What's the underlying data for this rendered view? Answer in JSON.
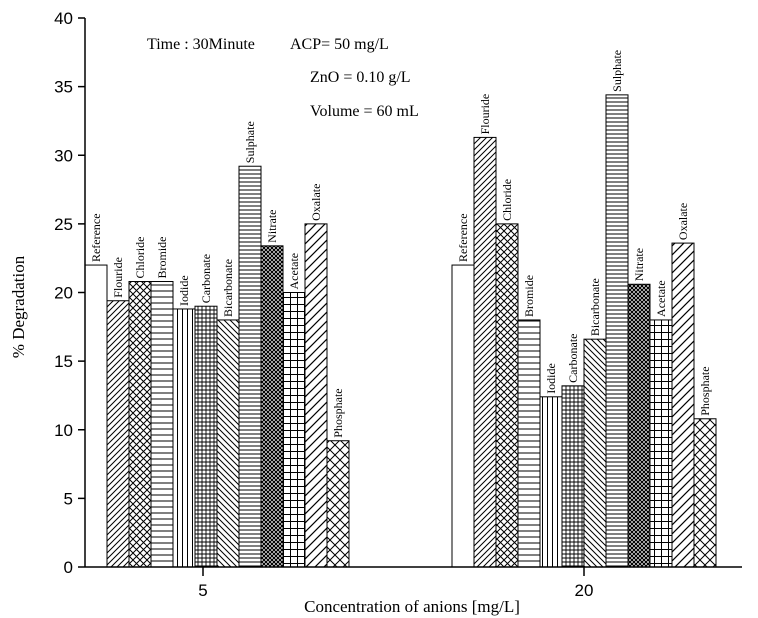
{
  "chart_data": {
    "type": "bar",
    "xlabel": "Concentration of anions [mg/L]",
    "ylabel": "% Degradation",
    "ylim": [
      0,
      40
    ],
    "yticks": [
      0,
      5,
      10,
      15,
      20,
      25,
      30,
      35,
      40
    ],
    "grid": false,
    "categories": [
      "5",
      "20"
    ],
    "series": [
      {
        "name": "Reference",
        "pattern": "none",
        "values": [
          22.0,
          22.0
        ]
      },
      {
        "name": "Flouride",
        "pattern": "diag-fwd",
        "values": [
          19.4,
          31.3
        ]
      },
      {
        "name": "Chloride",
        "pattern": "crosshatch",
        "values": [
          20.8,
          25.0
        ]
      },
      {
        "name": "Bromide",
        "pattern": "horizontal",
        "values": [
          20.8,
          18.0
        ]
      },
      {
        "name": "Iodide",
        "pattern": "vertical",
        "values": [
          18.8,
          12.4
        ]
      },
      {
        "name": "Carbonate",
        "pattern": "grid",
        "values": [
          19.0,
          13.2
        ]
      },
      {
        "name": "Bicarbonate",
        "pattern": "diag-back",
        "values": [
          18.0,
          16.6
        ]
      },
      {
        "name": "Sulphate",
        "pattern": "horiz-dense",
        "values": [
          29.2,
          34.4
        ]
      },
      {
        "name": "Nitrate",
        "pattern": "dense-cross",
        "values": [
          23.4,
          20.6
        ]
      },
      {
        "name": "Acetate",
        "pattern": "grid-wide",
        "values": [
          20.0,
          18.0
        ]
      },
      {
        "name": "Oxalate",
        "pattern": "diag-fwd-wide",
        "values": [
          25.0,
          23.6
        ]
      },
      {
        "name": "Phosphate",
        "pattern": "crosshatch-wide",
        "values": [
          9.2,
          10.8
        ]
      }
    ],
    "annotations": [
      "Time : 30Minute",
      "ACP= 50 mg/L",
      "ZnO = 0.10 g/L",
      "Volume = 60 mL"
    ]
  }
}
